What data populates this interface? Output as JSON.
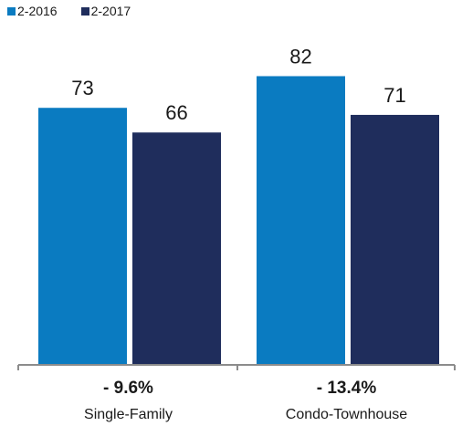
{
  "chart_data": {
    "type": "bar",
    "categories": [
      "Single-Family",
      "Condo-Townhouse"
    ],
    "series": [
      {
        "name": "2-2016",
        "values": [
          73,
          82
        ],
        "color": "#0a7bc1"
      },
      {
        "name": "2-2017",
        "values": [
          66,
          71
        ],
        "color": "#1f2d5c"
      }
    ],
    "changes": [
      "- 9.6%",
      "- 13.4%"
    ],
    "ylim": [
      0,
      100
    ],
    "grid": false,
    "legend": "top-left"
  }
}
